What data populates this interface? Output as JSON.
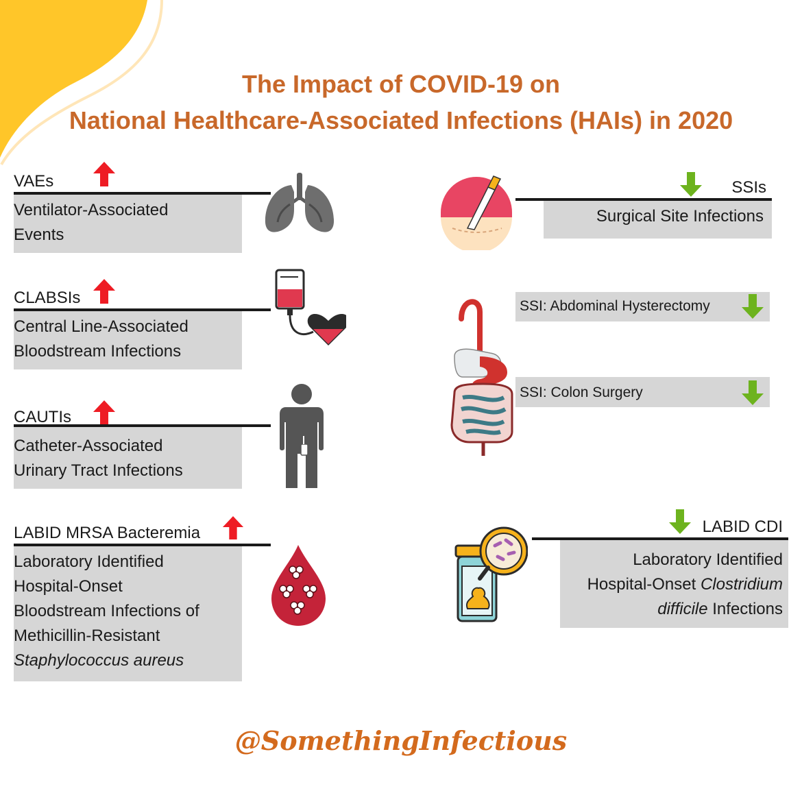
{
  "title": {
    "line1": "The Impact of COVID-19 on",
    "line2": "National Healthcare-Associated Infections (HAIs) in 2020"
  },
  "colors": {
    "title": "#c8682a",
    "increase_arrow": "#ee1c24",
    "decrease_arrow": "#6db31e",
    "box": "#d6d6d6",
    "blob": "#ffc629",
    "footer": "#d36a1d"
  },
  "left_items": [
    {
      "label": "VAEs",
      "trend": "increase",
      "desc_lines": [
        "Ventilator-Associated",
        "Events"
      ],
      "icon": "lungs-icon"
    },
    {
      "label": "CLABSIs",
      "trend": "increase",
      "desc_lines": [
        "Central Line-Associated",
        "Bloodstream Infections"
      ],
      "icon": "iv-bag-heart-icon"
    },
    {
      "label": "CAUTIs",
      "trend": "increase",
      "desc_lines": [
        "Catheter-Associated",
        "Urinary Tract Infections"
      ],
      "icon": "person-catheter-icon"
    },
    {
      "label": "LABID MRSA Bacteremia",
      "trend": "increase",
      "desc_lines": [
        "Laboratory Identified",
        "Hospital-Onset",
        "Bloodstream Infections of",
        "Methicillin-Resistant"
      ],
      "desc_italic": "Staphylococcus aureus",
      "icon": "blood-drop-bacteria-icon"
    }
  ],
  "right_items": {
    "ssis": {
      "label": "SSIs",
      "trend": "decrease",
      "desc": "Surgical Site Infections",
      "icon": "scalpel-incision-icon"
    },
    "ssi_abd": {
      "label": "SSI: Abdominal Hysterectomy",
      "trend": "decrease"
    },
    "ssi_colon": {
      "label": "SSI: Colon Surgery",
      "trend": "decrease"
    },
    "digestive_icon": "digestive-system-icon",
    "cdi": {
      "label": "LABID CDI",
      "trend": "decrease",
      "line1": "Laboratory Identified",
      "line2_plain": "Hospital-Onset ",
      "line2_italic": "Clostridium",
      "line3_italic": "difficile",
      "line3_plain": " Infections",
      "icon": "stool-sample-microscope-icon"
    }
  },
  "footer": "@SomethingInfectious"
}
